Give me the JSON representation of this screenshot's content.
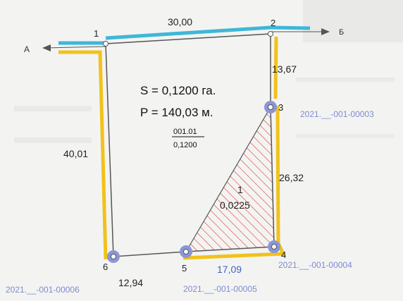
{
  "road": {
    "left_label": "А",
    "right_label": "Б"
  },
  "parcel": {
    "area_text": "S = 0,1200 га.",
    "perimeter_text": "P = 140,03 м.",
    "number": "001.01",
    "area_fraction": "0,1200"
  },
  "subparcel": {
    "number": "1",
    "area": "0,0225"
  },
  "dimensions": {
    "d12": "30,00",
    "d23": "13,67",
    "d34": "26,32",
    "d45": "17,09",
    "d56": "12,94",
    "d61": "40,01"
  },
  "points": {
    "p1": "1",
    "p2": "2",
    "p3": "3",
    "p4": "4",
    "p5": "5",
    "p6": "6"
  },
  "cadastral": {
    "c3": "2021.__-001-00003",
    "c4": "2021.__-001-00004",
    "c5": "2021.__-001-00005",
    "c6": "2021.__-001-00006"
  },
  "colors": {
    "boundary": "#555555",
    "road_line": "#3fb7d8",
    "neighbor_line": "#f2c21b",
    "hatch": "#e0443e",
    "point_marker": "#8a96d8",
    "cadastral_text": "#7f8ad0"
  }
}
